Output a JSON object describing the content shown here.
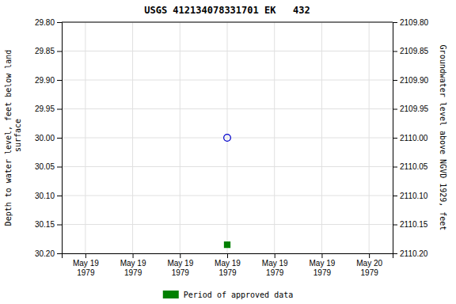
{
  "chart_data": {
    "type": "scatter",
    "title": "USGS 412134078331701 EK   432",
    "y_label": "Depth to water level, feet below land\n surface",
    "y2_label": "Groundwater level above NGVD 1929, feet",
    "categories": [
      "May 19\n1979",
      "May 19\n1979",
      "May 19\n1979",
      "May 19\n1979",
      "May 19\n1979",
      "May 19\n1979",
      "May 20\n1979"
    ],
    "series": [
      {
        "color": "#0000cc",
        "marker": "circle-open",
        "values": [
          null,
          null,
          null,
          30.0,
          null,
          null,
          null
        ]
      },
      {
        "name": "Period of approved data",
        "color": "#008000",
        "marker": "square",
        "values": [
          null,
          null,
          null,
          30.185,
          null,
          null,
          null
        ]
      }
    ],
    "ylim": [
      30.2,
      29.8
    ],
    "yticks": [
      {
        "value": 29.8,
        "label": "29.80"
      },
      {
        "value": 29.85,
        "label": "29.85"
      },
      {
        "value": 29.9,
        "label": "29.90"
      },
      {
        "value": 29.95,
        "label": "29.95"
      },
      {
        "value": 30.0,
        "label": "30.00"
      },
      {
        "value": 30.05,
        "label": "30.05"
      },
      {
        "value": 30.1,
        "label": "30.10"
      },
      {
        "value": 30.15,
        "label": "30.15"
      },
      {
        "value": 30.2,
        "label": "30.20"
      }
    ],
    "y2lim": [
      2110.2,
      2109.8
    ],
    "y2ticks": [
      {
        "value": 2110.2,
        "label": "2110.20"
      },
      {
        "value": 2110.15,
        "label": "2110.15"
      },
      {
        "value": 2110.1,
        "label": "2110.10"
      },
      {
        "value": 2110.05,
        "label": "2110.05"
      },
      {
        "value": 2110.0,
        "label": "2110.00"
      },
      {
        "value": 2109.95,
        "label": "2109.95"
      },
      {
        "value": 2109.9,
        "label": "2109.90"
      },
      {
        "value": 2109.85,
        "label": "2109.85"
      },
      {
        "value": 2109.8,
        "label": "2109.80"
      }
    ],
    "grid": true,
    "legend": "bottom"
  }
}
